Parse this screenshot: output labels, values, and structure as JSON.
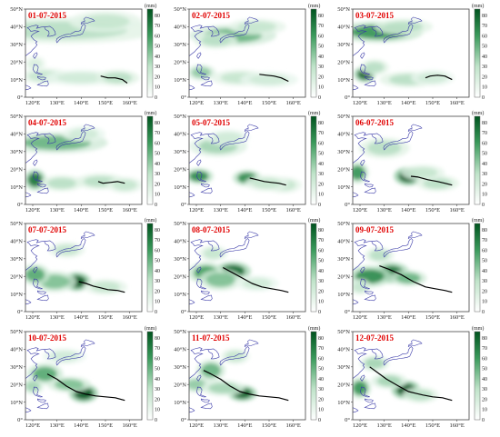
{
  "figure": {
    "unit_label": "(mm)",
    "colorbar": {
      "ticks": [
        "0",
        "10",
        "20",
        "30",
        "40",
        "50",
        "60",
        "70",
        "80"
      ],
      "colors": {
        "low": "#ffffff",
        "high": "#00541f"
      }
    },
    "axes": {
      "lat_ticks": [
        "0°",
        "10°N",
        "20°N",
        "30°N",
        "40°N",
        "50°N"
      ],
      "lon_ticks": [
        "120°E",
        "130°E",
        "140°E",
        "150°E",
        "160°E"
      ]
    },
    "colors": {
      "coastline": "#3a3aa8",
      "track": "#000000",
      "date": "#e00000"
    },
    "panels": [
      {
        "date": "01-07-2015",
        "track": [
          [
            159,
            8
          ],
          [
            157,
            10
          ],
          [
            154,
            11
          ],
          [
            151,
            11
          ],
          [
            148,
            12
          ]
        ],
        "rain": [
          [
            133,
            38,
            26,
            5,
            0.35
          ],
          [
            150,
            43,
            10,
            4,
            0.3
          ],
          [
            125,
            12,
            7,
            3,
            0.3
          ],
          [
            140,
            11,
            10,
            3,
            0.25
          ],
          [
            155,
            11,
            6,
            3,
            0.35
          ],
          [
            121,
            19,
            3,
            3,
            0.2
          ]
        ]
      },
      {
        "date": "02-07-2015",
        "track": [
          [
            158,
            9
          ],
          [
            155,
            11
          ],
          [
            152,
            12
          ],
          [
            149,
            12.5
          ],
          [
            146,
            13
          ]
        ],
        "rain": [
          [
            135,
            35,
            12,
            4,
            0.55
          ],
          [
            128,
            32,
            6,
            3,
            0.35
          ],
          [
            122,
            14,
            4,
            3,
            0.45
          ],
          [
            138,
            11,
            8,
            3,
            0.3
          ],
          [
            150,
            10,
            8,
            3,
            0.25
          ],
          [
            145,
            40,
            8,
            3,
            0.3
          ]
        ]
      },
      {
        "date": "03-07-2015",
        "track": [
          [
            158,
            10
          ],
          [
            155,
            12
          ],
          [
            152,
            12.5
          ],
          [
            149,
            12
          ],
          [
            147,
            11
          ]
        ],
        "rain": [
          [
            128,
            37,
            12,
            4,
            0.7
          ],
          [
            122,
            13,
            3,
            3,
            0.95
          ],
          [
            140,
            10,
            8,
            3,
            0.35
          ],
          [
            150,
            11,
            6,
            3,
            0.25
          ],
          [
            138,
            40,
            8,
            3,
            0.35
          ],
          [
            126,
            17,
            4,
            3,
            0.35
          ]
        ]
      },
      {
        "date": "04-07-2015",
        "track": [
          [
            158,
            12
          ],
          [
            155,
            13
          ],
          [
            152,
            12.5
          ],
          [
            149,
            12
          ],
          [
            147,
            13
          ]
        ],
        "rain": [
          [
            130,
            35,
            14,
            4,
            0.55
          ],
          [
            121,
            14,
            3,
            4,
            0.85
          ],
          [
            132,
            12,
            6,
            3,
            0.35
          ],
          [
            148,
            13,
            7,
            3,
            0.35
          ],
          [
            158,
            11,
            5,
            3,
            0.3
          ],
          [
            141,
            40,
            6,
            3,
            0.25
          ]
        ]
      },
      {
        "date": "05-07-2015",
        "track": [
          [
            157,
            11
          ],
          [
            154,
            12
          ],
          [
            151,
            12.5
          ],
          [
            148,
            13
          ],
          [
            145,
            14
          ],
          [
            142,
            15
          ]
        ],
        "rain": [
          [
            121,
            16,
            4,
            3,
            0.75
          ],
          [
            141,
            15,
            4,
            3,
            0.75
          ],
          [
            129,
            33,
            8,
            4,
            0.4
          ],
          [
            156,
            11,
            5,
            3,
            0.3
          ],
          [
            149,
            12,
            6,
            3,
            0.3
          ],
          [
            133,
            38,
            6,
            3,
            0.25
          ]
        ]
      },
      {
        "date": "06-07-2015",
        "track": [
          [
            158,
            11
          ],
          [
            155,
            12
          ],
          [
            152,
            13
          ],
          [
            148,
            14
          ],
          [
            144,
            15.5
          ],
          [
            141,
            16
          ]
        ],
        "rain": [
          [
            140,
            16,
            4,
            3.5,
            1.0
          ],
          [
            119,
            18,
            3,
            4,
            0.7
          ],
          [
            152,
            12,
            6,
            3,
            0.35
          ],
          [
            130,
            32,
            7,
            4,
            0.35
          ],
          [
            146,
            18,
            6,
            3,
            0.3
          ]
        ]
      },
      {
        "date": "07-07-2015",
        "track": [
          [
            158,
            11
          ],
          [
            155,
            12
          ],
          [
            151,
            12.5
          ],
          [
            148,
            13.5
          ],
          [
            145,
            14.5
          ],
          [
            142,
            16
          ],
          [
            139,
            17
          ]
        ],
        "rain": [
          [
            138,
            17,
            4,
            3.5,
            1.0
          ],
          [
            129,
            17,
            6,
            4,
            0.5
          ],
          [
            121,
            21,
            4,
            4,
            0.6
          ],
          [
            134,
            35,
            5,
            3,
            0.3
          ],
          [
            150,
            14,
            6,
            3,
            0.3
          ]
        ]
      },
      {
        "date": "08-07-2015",
        "track": [
          [
            158,
            11
          ],
          [
            155,
            12
          ],
          [
            151,
            13
          ],
          [
            147,
            14
          ],
          [
            143,
            16
          ],
          [
            139,
            19
          ],
          [
            135,
            22
          ],
          [
            131,
            25
          ]
        ],
        "rain": [
          [
            135,
            23,
            5,
            3.5,
            0.9
          ],
          [
            124,
            22,
            5,
            4,
            0.65
          ],
          [
            130,
            18,
            6,
            4,
            0.5
          ],
          [
            127,
            33,
            4,
            3,
            0.3
          ],
          [
            145,
            16,
            6,
            3,
            0.25
          ]
        ]
      },
      {
        "date": "09-07-2015",
        "track": [
          [
            158,
            11
          ],
          [
            155,
            12
          ],
          [
            151,
            13
          ],
          [
            147,
            14
          ],
          [
            142,
            17
          ],
          [
            137,
            21
          ],
          [
            132,
            24
          ],
          [
            128,
            26
          ]
        ],
        "rain": [
          [
            133,
            22,
            5,
            4,
            0.85
          ],
          [
            124,
            20,
            6,
            4,
            0.75
          ],
          [
            140,
            19,
            5,
            3,
            0.55
          ],
          [
            128,
            32,
            4,
            3,
            0.35
          ],
          [
            120,
            14,
            3,
            3,
            0.3
          ]
        ]
      },
      {
        "date": "10-07-2015",
        "track": [
          [
            158,
            11
          ],
          [
            154,
            12.5
          ],
          [
            150,
            13
          ],
          [
            146,
            13.5
          ],
          [
            142,
            14.5
          ],
          [
            138,
            16
          ],
          [
            134,
            19
          ],
          [
            130,
            23
          ],
          [
            126,
            26
          ]
        ],
        "rain": [
          [
            141,
            15,
            4,
            3.5,
            1.0
          ],
          [
            125,
            26,
            5,
            4,
            0.6
          ],
          [
            135,
            20,
            6,
            3,
            0.5
          ],
          [
            133,
            36,
            6,
            3,
            0.25
          ],
          [
            120,
            19,
            3,
            3,
            0.4
          ]
        ]
      },
      {
        "date": "11-07-2015",
        "track": [
          [
            158,
            11
          ],
          [
            154,
            12.5
          ],
          [
            150,
            13
          ],
          [
            146,
            13.5
          ],
          [
            142,
            14.5
          ],
          [
            138,
            16
          ],
          [
            134,
            19
          ],
          [
            130,
            23
          ],
          [
            126,
            26
          ],
          [
            123,
            28
          ]
        ],
        "rain": [
          [
            139,
            15,
            4,
            3,
            0.95
          ],
          [
            126,
            28,
            4,
            4,
            0.55
          ],
          [
            120,
            20,
            4,
            3,
            0.45
          ],
          [
            131,
            18,
            6,
            3,
            0.4
          ],
          [
            136,
            36,
            4,
            3,
            0.3
          ]
        ]
      },
      {
        "date": "12-07-2015",
        "track": [
          [
            158,
            11
          ],
          [
            154,
            12.5
          ],
          [
            150,
            13
          ],
          [
            146,
            14
          ],
          [
            143,
            15
          ],
          [
            140,
            16
          ],
          [
            136,
            19
          ],
          [
            131,
            23
          ],
          [
            127,
            27
          ],
          [
            124,
            30
          ]
        ],
        "rain": [
          [
            139,
            17,
            4,
            3.5,
            1.0
          ],
          [
            120,
            18,
            3,
            4,
            0.7
          ],
          [
            126,
            32,
            4,
            3,
            0.4
          ],
          [
            132,
            22,
            5,
            3,
            0.4
          ],
          [
            145,
            14,
            5,
            3,
            0.35
          ]
        ]
      }
    ]
  }
}
